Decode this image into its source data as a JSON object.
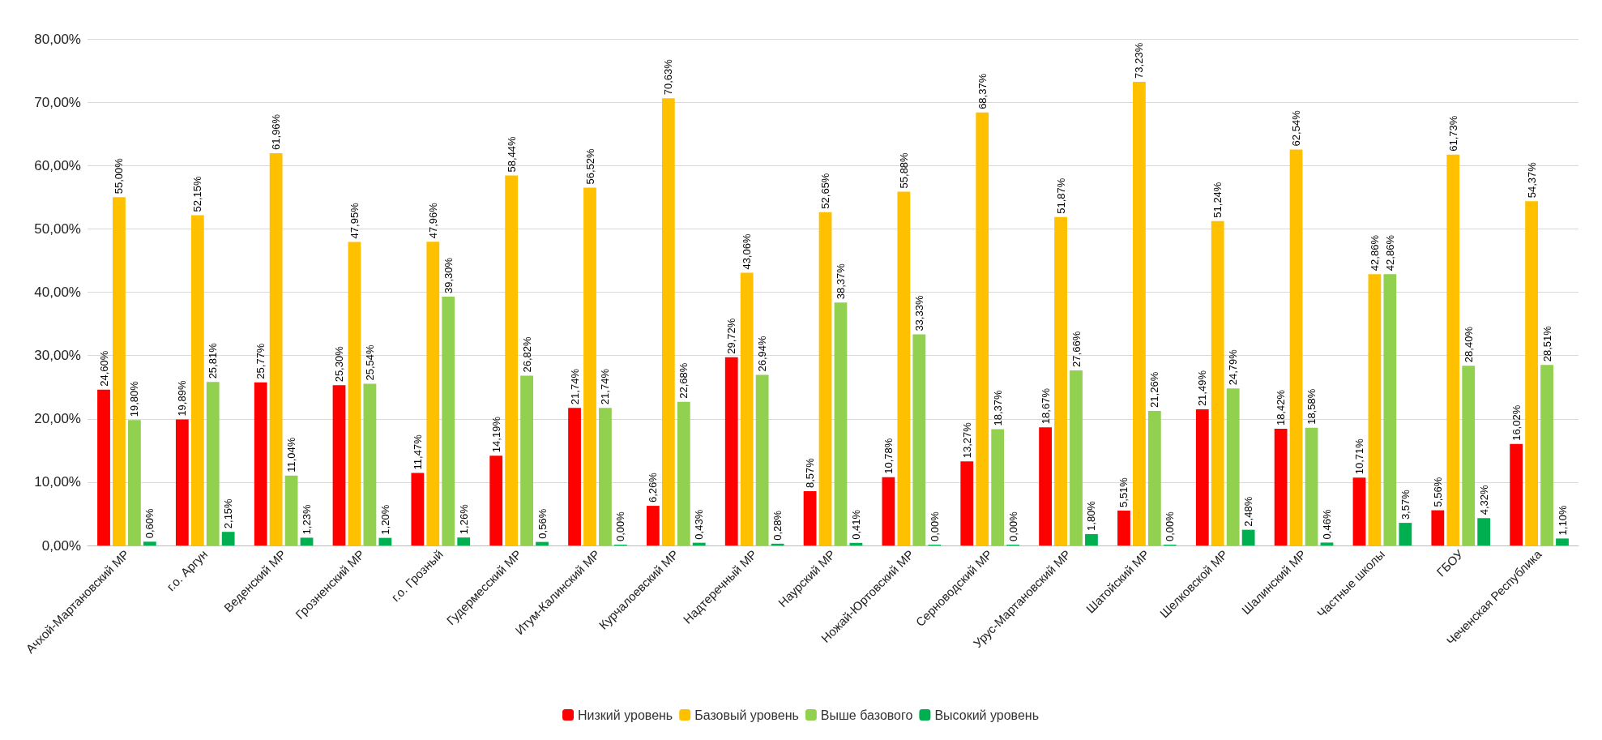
{
  "chart_data": {
    "type": "bar",
    "categories": [
      "Ачхой-Мартановский МР",
      "г.о. Аргун",
      "Веденский МР",
      "Грозненский МР",
      "г.о. Грозный",
      "Гудермесский МР",
      "Итум-Калинский МР",
      "Курчалоевский МР",
      "Надтеречный МР",
      "Наурский МР",
      "Ножай-Юртовский МР",
      "Серноводский МР",
      "Урус-Мартановский МР",
      "Шатойский МР",
      "Шелковской МР",
      "Шалинский МР",
      "Частные школы",
      "ГБОУ",
      "Чеченская Республика"
    ],
    "series": [
      {
        "name": "Низкий уровень",
        "color": "#ff0000",
        "values": [
          24.6,
          19.89,
          25.77,
          25.3,
          11.47,
          14.19,
          21.74,
          6.26,
          29.72,
          8.57,
          10.78,
          13.27,
          18.67,
          5.51,
          21.49,
          18.42,
          10.71,
          5.56,
          16.02
        ],
        "value_labels": [
          "24,60%",
          "19,89%",
          "25,77%",
          "25,30%",
          "11,47%",
          "14,19%",
          "21,74%",
          "6,26%",
          "29,72%",
          "8,57%",
          "10,78%",
          "13,27%",
          "18,67%",
          "5,51%",
          "21,49%",
          "18,42%",
          "10,71%",
          "5,56%",
          "16,02%"
        ]
      },
      {
        "name": "Базовый уровень",
        "color": "#ffc000",
        "values": [
          55.0,
          52.15,
          61.96,
          47.95,
          47.96,
          58.44,
          56.52,
          70.63,
          43.06,
          52.65,
          55.88,
          68.37,
          51.87,
          73.23,
          51.24,
          62.54,
          42.86,
          61.73,
          54.37
        ],
        "value_labels": [
          "55,00%",
          "52,15%",
          "61,96%",
          "47,95%",
          "47,96%",
          "58,44%",
          "56,52%",
          "70,63%",
          "43,06%",
          "52,65%",
          "55,88%",
          "68,37%",
          "51,87%",
          "73,23%",
          "51,24%",
          "62,54%",
          "42,86%",
          "61,73%",
          "54,37%"
        ]
      },
      {
        "name": "Выше базового",
        "color": "#92d050",
        "values": [
          19.8,
          25.81,
          11.04,
          25.54,
          39.3,
          26.82,
          21.74,
          22.68,
          26.94,
          38.37,
          33.33,
          18.37,
          27.66,
          21.26,
          24.79,
          18.58,
          42.86,
          28.4,
          28.51
        ],
        "value_labels": [
          "19,80%",
          "25,81%",
          "11,04%",
          "25,54%",
          "39,30%",
          "26,82%",
          "21,74%",
          "22,68%",
          "26,94%",
          "38,37%",
          "33,33%",
          "18,37%",
          "27,66%",
          "21,26%",
          "24,79%",
          "18,58%",
          "42,86%",
          "28,40%",
          "28,51%"
        ]
      },
      {
        "name": "Высокий уровень",
        "color": "#00b050",
        "values": [
          0.6,
          2.15,
          1.23,
          1.2,
          1.26,
          0.56,
          0.0,
          0.43,
          0.28,
          0.41,
          0.0,
          0.0,
          1.8,
          0.0,
          2.48,
          0.46,
          3.57,
          4.32,
          1.1
        ],
        "value_labels": [
          "0,60%",
          "2,15%",
          "1,23%",
          "1,20%",
          "1,26%",
          "0,56%",
          "0,00%",
          "0,43%",
          "0,28%",
          "0,41%",
          "0,00%",
          "0,00%",
          "1,80%",
          "0,00%",
          "2,48%",
          "0,46%",
          "3,57%",
          "4,32%",
          "1,10%"
        ]
      }
    ],
    "ylim": [
      0,
      80
    ],
    "yticks": [
      {
        "value": 0,
        "label": "0,00%"
      },
      {
        "value": 10,
        "label": "10,00%"
      },
      {
        "value": 20,
        "label": "20,00%"
      },
      {
        "value": 30,
        "label": "30,00%"
      },
      {
        "value": 40,
        "label": "40,00%"
      },
      {
        "value": 50,
        "label": "50,00%"
      },
      {
        "value": 60,
        "label": "60,00%"
      },
      {
        "value": 70,
        "label": "70,00%"
      },
      {
        "value": 80,
        "label": "80,00%"
      }
    ],
    "grid": "y",
    "legend": "bottom"
  }
}
